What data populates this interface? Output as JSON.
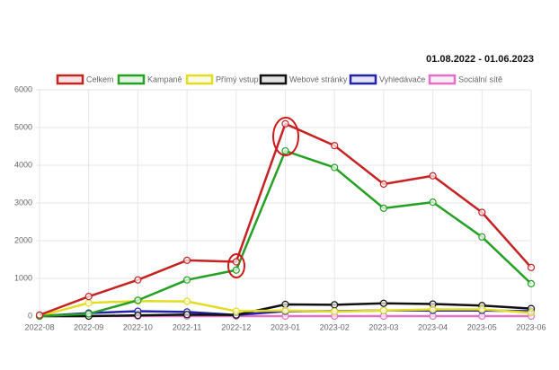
{
  "chart_data": {
    "type": "line",
    "title": "01.08.2022 - 01.06.2023",
    "categories": [
      "2022-08",
      "2022-09",
      "2022-10",
      "2022-11",
      "2022-12",
      "2023-01",
      "2023-02",
      "2023-03",
      "2023-04",
      "2023-05",
      "2023-06"
    ],
    "series": [
      {
        "name": "Celkem",
        "color": "#c62222",
        "values": [
          30,
          520,
          960,
          1480,
          1440,
          5100,
          4520,
          3500,
          3720,
          2750,
          1290
        ]
      },
      {
        "name": "Kampaně",
        "color": "#24a024",
        "values": [
          0,
          60,
          420,
          960,
          1220,
          4380,
          3940,
          2860,
          3020,
          2100,
          860
        ]
      },
      {
        "name": "Přímý vstup",
        "color": "#e2dc22",
        "values": [
          0,
          350,
          400,
          390,
          130,
          150,
          120,
          150,
          180,
          180,
          90
        ]
      },
      {
        "name": "Webové stránky",
        "color": "#111111",
        "values": [
          0,
          0,
          20,
          40,
          30,
          310,
          300,
          340,
          320,
          280,
          200
        ]
      },
      {
        "name": "Vyhledávače",
        "color": "#2222aa",
        "values": [
          0,
          80,
          130,
          110,
          30,
          130,
          130,
          150,
          150,
          150,
          130
        ]
      },
      {
        "name": "Sociální sítě",
        "color": "#e070c8",
        "values": [
          0,
          0,
          0,
          0,
          0,
          0,
          0,
          0,
          0,
          0,
          0
        ]
      }
    ],
    "ylim": [
      0,
      6000
    ],
    "yticks": [
      0,
      1000,
      2000,
      3000,
      4000,
      5000,
      6000
    ],
    "grid": true
  }
}
